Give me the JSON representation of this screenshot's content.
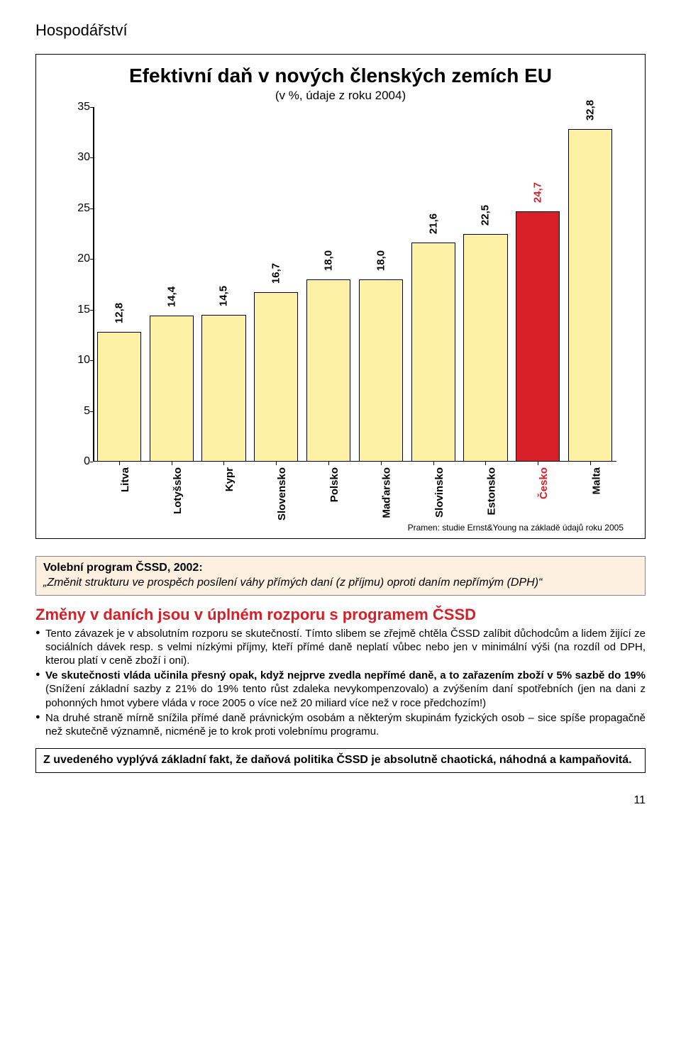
{
  "section_title": "Hospodářství",
  "chart": {
    "type": "bar",
    "title": "Efektivní daň v nových členských zemích EU",
    "subtitle": "(v %, údaje z roku 2004)",
    "ylim_min": 0,
    "ylim_max": 35,
    "ytick_step": 5,
    "yticks": [
      0,
      5,
      10,
      15,
      20,
      25,
      30,
      35
    ],
    "bars": [
      {
        "label": "Litva",
        "value": 12.8,
        "display": "12,8",
        "fill": "#fdf1a6",
        "text_color": "#000000",
        "label_color": "#000000"
      },
      {
        "label": "Lotyšsko",
        "value": 14.4,
        "display": "14,4",
        "fill": "#fdf1a6",
        "text_color": "#000000",
        "label_color": "#000000"
      },
      {
        "label": "Kypr",
        "value": 14.5,
        "display": "14,5",
        "fill": "#fdf1a6",
        "text_color": "#000000",
        "label_color": "#000000"
      },
      {
        "label": "Slovensko",
        "value": 16.7,
        "display": "16,7",
        "fill": "#fdf1a6",
        "text_color": "#000000",
        "label_color": "#000000"
      },
      {
        "label": "Polsko",
        "value": 18.0,
        "display": "18,0",
        "fill": "#fdf1a6",
        "text_color": "#000000",
        "label_color": "#000000"
      },
      {
        "label": "Maďarsko",
        "value": 18.0,
        "display": "18,0",
        "fill": "#fdf1a6",
        "text_color": "#000000",
        "label_color": "#000000"
      },
      {
        "label": "Slovinsko",
        "value": 21.6,
        "display": "21,6",
        "fill": "#fdf1a6",
        "text_color": "#000000",
        "label_color": "#000000"
      },
      {
        "label": "Estonsko",
        "value": 22.5,
        "display": "22,5",
        "fill": "#fdf1a6",
        "text_color": "#000000",
        "label_color": "#000000"
      },
      {
        "label": "Česko",
        "value": 24.7,
        "display": "24,7",
        "fill": "#d61f26",
        "text_color": "#d61f26",
        "label_color": "#d61f26"
      },
      {
        "label": "Malta",
        "value": 32.8,
        "display": "32,8",
        "fill": "#fdf1a6",
        "text_color": "#000000",
        "label_color": "#000000"
      }
    ],
    "source": "Pramen: studie Ernst&Young na základě údajů roku 2005"
  },
  "callout": {
    "title": "Volební program ČSSD, 2002:",
    "quote": "„Změnit strukturu ve prospěch posílení váhy přímých daní (z příjmu) oproti daním nepřímým (DPH)“"
  },
  "heading": "Změny v daních jsou v úplném rozporu s programem ČSSD",
  "bullets": [
    "Tento závazek je v absolutním rozporu se skutečností. Tímto slibem se zřejmě chtěla ČSSD zalíbit důchodcům a lidem žijící ze sociálních dávek resp. s velmi nízkými příjmy, kteří přímé daně neplatí vůbec nebo jen v minimální výši (na rozdíl od DPH, kterou platí v ceně zboží i oni).",
    "<b>Ve skutečnosti vláda učinila přesný opak, když nejprve zvedla nepřímé daně, a to zařazením zboží v 5% sazbě do 19%</b> (Snížení základní sazby z 21% do 19% tento růst zdaleka nevykompenzovalo) a zvýšením daní spotřebních (jen na dani z pohonných hmot vybere vláda v roce 2005 o více než 20 miliard více než v roce předchozím!)",
    "Na druhé straně mírně snížila přímé daně právnickým osobám a některým skupinám fyzických osob – sice spíše propagačně než skutečně významně, nicméně je to krok proti volebnímu programu."
  ],
  "summary": "Z uvedeného vyplývá základní fakt, že daňová politika ČSSD je absolutně chaotická, náhodná a kampaňovitá.",
  "page_number": "11"
}
